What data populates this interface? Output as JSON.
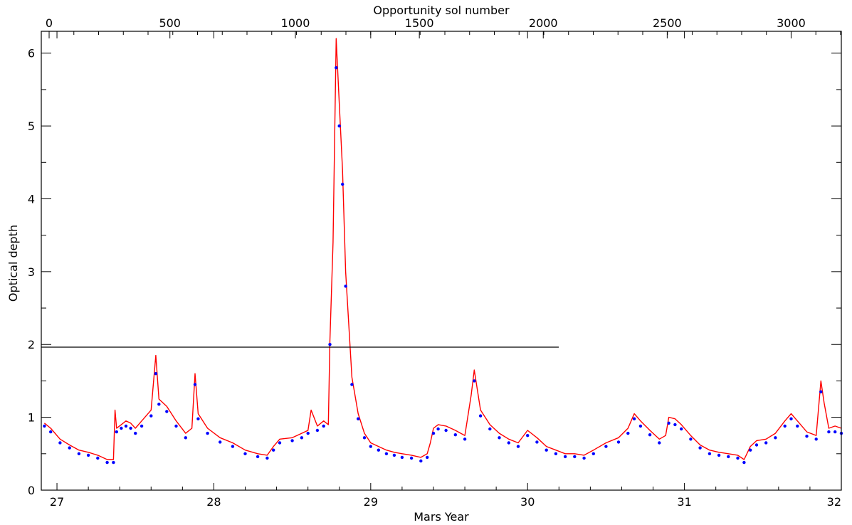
{
  "chart_data": {
    "type": "line",
    "xlabel": "Mars Year",
    "x2label": "Opportunity sol number",
    "ylabel": "Optical depth",
    "xlim": [
      26.9,
      32.0
    ],
    "ylim": [
      0,
      6.3
    ],
    "x_ticks": [
      "27",
      "28",
      "29",
      "30",
      "31",
      "32"
    ],
    "x2_ticks": [
      "0",
      "500",
      "1000",
      "1500",
      "2000",
      "2500",
      "3000"
    ],
    "x2_tick_positions_year": [
      26.95,
      27.72,
      28.52,
      29.31,
      30.1,
      30.89,
      31.68
    ],
    "y_ticks": [
      "0",
      "1",
      "2",
      "3",
      "4",
      "5",
      "6"
    ],
    "grid": false,
    "series": [
      {
        "name": "",
        "color": "#ff0000",
        "style": "line",
        "x": [
          26.92,
          26.96,
          27.02,
          27.08,
          27.14,
          27.2,
          27.26,
          27.32,
          27.36,
          27.37,
          27.38,
          27.41,
          27.44,
          27.47,
          27.5,
          27.54,
          27.6,
          27.63,
          27.65,
          27.7,
          27.76,
          27.82,
          27.86,
          27.88,
          27.9,
          27.96,
          28.04,
          28.12,
          28.2,
          28.28,
          28.34,
          28.38,
          28.42,
          28.5,
          28.56,
          28.6,
          28.62,
          28.66,
          28.7,
          28.73,
          28.74,
          28.76,
          28.78,
          28.8,
          28.82,
          28.84,
          28.88,
          28.92,
          28.96,
          29.0,
          29.05,
          29.1,
          29.15,
          29.2,
          29.26,
          29.32,
          29.36,
          29.38,
          29.4,
          29.43,
          29.48,
          29.54,
          29.6,
          29.64,
          29.66,
          29.7,
          29.76,
          29.82,
          29.88,
          29.94,
          30.0,
          30.06,
          30.12,
          30.18,
          30.24,
          30.3,
          30.36,
          30.42,
          30.5,
          30.58,
          30.64,
          30.68,
          30.72,
          30.78,
          30.84,
          30.88,
          30.9,
          30.94,
          30.98,
          31.04,
          31.1,
          31.16,
          31.22,
          31.28,
          31.34,
          31.38,
          31.42,
          31.46,
          31.52,
          31.58,
          31.64,
          31.68,
          31.72,
          31.78,
          31.84,
          31.87,
          31.89,
          31.92,
          31.96,
          32.0
        ],
        "y": [
          0.92,
          0.85,
          0.7,
          0.62,
          0.55,
          0.52,
          0.48,
          0.42,
          0.42,
          1.1,
          0.85,
          0.9,
          0.95,
          0.92,
          0.85,
          0.95,
          1.1,
          1.85,
          1.25,
          1.15,
          0.95,
          0.78,
          0.85,
          1.6,
          1.05,
          0.85,
          0.72,
          0.65,
          0.55,
          0.5,
          0.48,
          0.6,
          0.7,
          0.72,
          0.78,
          0.82,
          1.1,
          0.88,
          0.95,
          0.9,
          2.05,
          3.4,
          6.2,
          5.3,
          4.4,
          3.0,
          1.55,
          1.05,
          0.78,
          0.65,
          0.6,
          0.55,
          0.52,
          0.5,
          0.48,
          0.45,
          0.5,
          0.65,
          0.85,
          0.9,
          0.88,
          0.82,
          0.75,
          1.3,
          1.65,
          1.1,
          0.9,
          0.78,
          0.7,
          0.65,
          0.82,
          0.72,
          0.6,
          0.55,
          0.5,
          0.5,
          0.48,
          0.55,
          0.65,
          0.72,
          0.85,
          1.05,
          0.95,
          0.82,
          0.7,
          0.75,
          1.0,
          0.98,
          0.9,
          0.75,
          0.62,
          0.55,
          0.52,
          0.5,
          0.48,
          0.42,
          0.6,
          0.68,
          0.7,
          0.78,
          0.95,
          1.05,
          0.95,
          0.8,
          0.75,
          1.5,
          1.2,
          0.85,
          0.88,
          0.85
        ]
      },
      {
        "name": "",
        "color": "#0000ff",
        "style": "points",
        "x": [
          26.92,
          26.96,
          27.02,
          27.08,
          27.14,
          27.2,
          27.26,
          27.32,
          27.36,
          27.38,
          27.41,
          27.44,
          27.47,
          27.5,
          27.54,
          27.6,
          27.63,
          27.65,
          27.7,
          27.76,
          27.82,
          27.88,
          27.9,
          27.96,
          28.04,
          28.12,
          28.2,
          28.28,
          28.34,
          28.38,
          28.42,
          28.5,
          28.56,
          28.6,
          28.66,
          28.7,
          28.74,
          28.78,
          28.8,
          28.82,
          28.84,
          28.88,
          28.92,
          28.96,
          29.0,
          29.05,
          29.1,
          29.15,
          29.2,
          29.26,
          29.32,
          29.36,
          29.4,
          29.43,
          29.48,
          29.54,
          29.6,
          29.66,
          29.7,
          29.76,
          29.82,
          29.88,
          29.94,
          30.0,
          30.06,
          30.12,
          30.18,
          30.24,
          30.3,
          30.36,
          30.42,
          30.5,
          30.58,
          30.64,
          30.68,
          30.72,
          30.78,
          30.84,
          30.9,
          30.94,
          30.98,
          31.04,
          31.1,
          31.16,
          31.22,
          31.28,
          31.34,
          31.38,
          31.42,
          31.46,
          31.52,
          31.58,
          31.64,
          31.68,
          31.72,
          31.78,
          31.84,
          31.87,
          31.92,
          31.96,
          32.0
        ],
        "y": [
          0.88,
          0.8,
          0.65,
          0.58,
          0.5,
          0.48,
          0.44,
          0.38,
          0.38,
          0.8,
          0.85,
          0.88,
          0.85,
          0.78,
          0.88,
          1.02,
          1.6,
          1.18,
          1.08,
          0.88,
          0.72,
          1.45,
          0.98,
          0.78,
          0.66,
          0.6,
          0.5,
          0.46,
          0.44,
          0.55,
          0.65,
          0.68,
          0.72,
          0.78,
          0.82,
          0.88,
          2.0,
          5.8,
          5.0,
          4.2,
          2.8,
          1.45,
          0.98,
          0.72,
          0.6,
          0.55,
          0.5,
          0.48,
          0.45,
          0.44,
          0.4,
          0.45,
          0.78,
          0.84,
          0.82,
          0.76,
          0.7,
          1.5,
          1.02,
          0.84,
          0.72,
          0.65,
          0.6,
          0.75,
          0.66,
          0.55,
          0.5,
          0.46,
          0.46,
          0.44,
          0.5,
          0.6,
          0.66,
          0.78,
          0.98,
          0.88,
          0.76,
          0.65,
          0.92,
          0.9,
          0.84,
          0.7,
          0.58,
          0.5,
          0.48,
          0.46,
          0.44,
          0.38,
          0.55,
          0.62,
          0.65,
          0.72,
          0.88,
          0.98,
          0.88,
          0.74,
          0.7,
          1.35,
          0.8,
          0.8,
          0.78
        ]
      }
    ]
  }
}
